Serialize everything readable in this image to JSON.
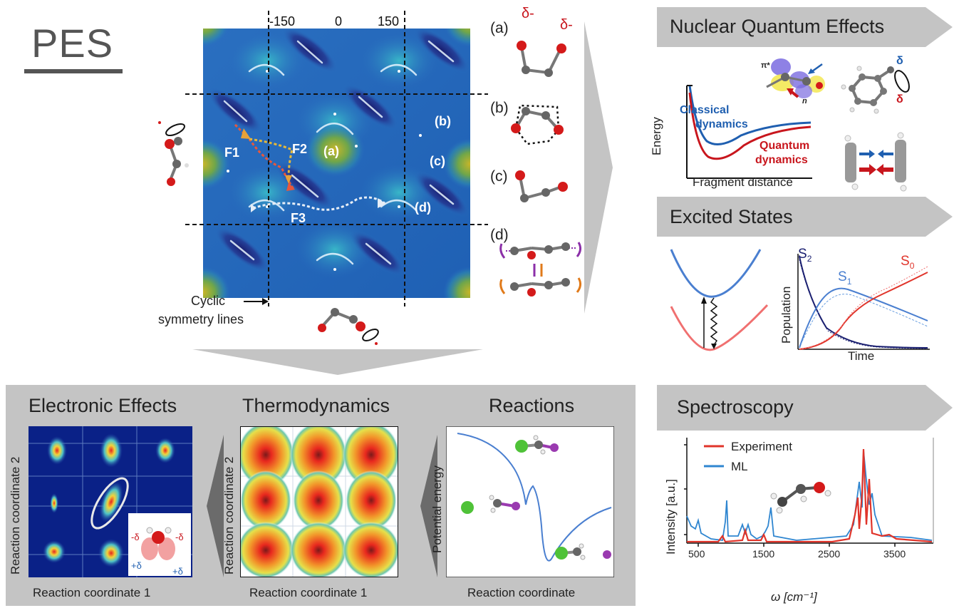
{
  "pes": {
    "title": "PES",
    "tick_labels": [
      "-150",
      "0",
      "150"
    ],
    "path_labels": [
      "F1",
      "F2",
      "F3"
    ],
    "region_labels": [
      "(a)",
      "(b)",
      "(c)",
      "(d)"
    ],
    "cyclic_label_1": "Cyclic",
    "cyclic_label_2": "symmetry lines"
  },
  "conformers": {
    "labels": [
      "(a)",
      "(b)",
      "(c)",
      "(d)"
    ],
    "delta_minus": "δ-"
  },
  "nqe": {
    "title": "Nuclear Quantum Effects",
    "classical_1": "Classical",
    "classical_2": "dynamics",
    "quantum_1": "Quantum",
    "quantum_2": "dynamics",
    "ylabel": "Energy",
    "xlabel": "Fragment distance",
    "pi_label": "π*",
    "n_label": "n",
    "delta_blue": "δ",
    "delta_red": "δ"
  },
  "excited": {
    "title": "Excited States",
    "ylabel": "Population",
    "xlabel": "Time",
    "s2": "S",
    "s2_sub": "2",
    "s1": "S",
    "s1_sub": "1",
    "s0": "S",
    "s0_sub": "0"
  },
  "electronic": {
    "title": "Electronic Effects",
    "ylabel": "Reaction coordinate 2",
    "xlabel": "Reaction coordinate 1",
    "neg_delta": "-δ",
    "pos_delta": "+δ"
  },
  "thermo": {
    "title": "Thermodynamics",
    "ylabel": "Reaction coordinate 2",
    "xlabel": "Reaction coordinate 1"
  },
  "reactions": {
    "title": "Reactions",
    "ylabel": "Potential energy",
    "xlabel": "Reaction coordinate"
  },
  "spectroscopy": {
    "title": "Spectroscopy",
    "legend": [
      "Experiment",
      "ML"
    ],
    "ylabel": "Intensity [a.u.]",
    "xlabel": "ω [cm⁻¹]",
    "xticks": [
      "500",
      "1500",
      "2500",
      "3500"
    ]
  },
  "colors": {
    "classical": "#1f5fb0",
    "quantum": "#c8161d",
    "experiment": "#e0342a",
    "ml": "#2f86d0",
    "reaction_curve": "#4a7fd0",
    "panel_grey": "#c4c4c4"
  }
}
